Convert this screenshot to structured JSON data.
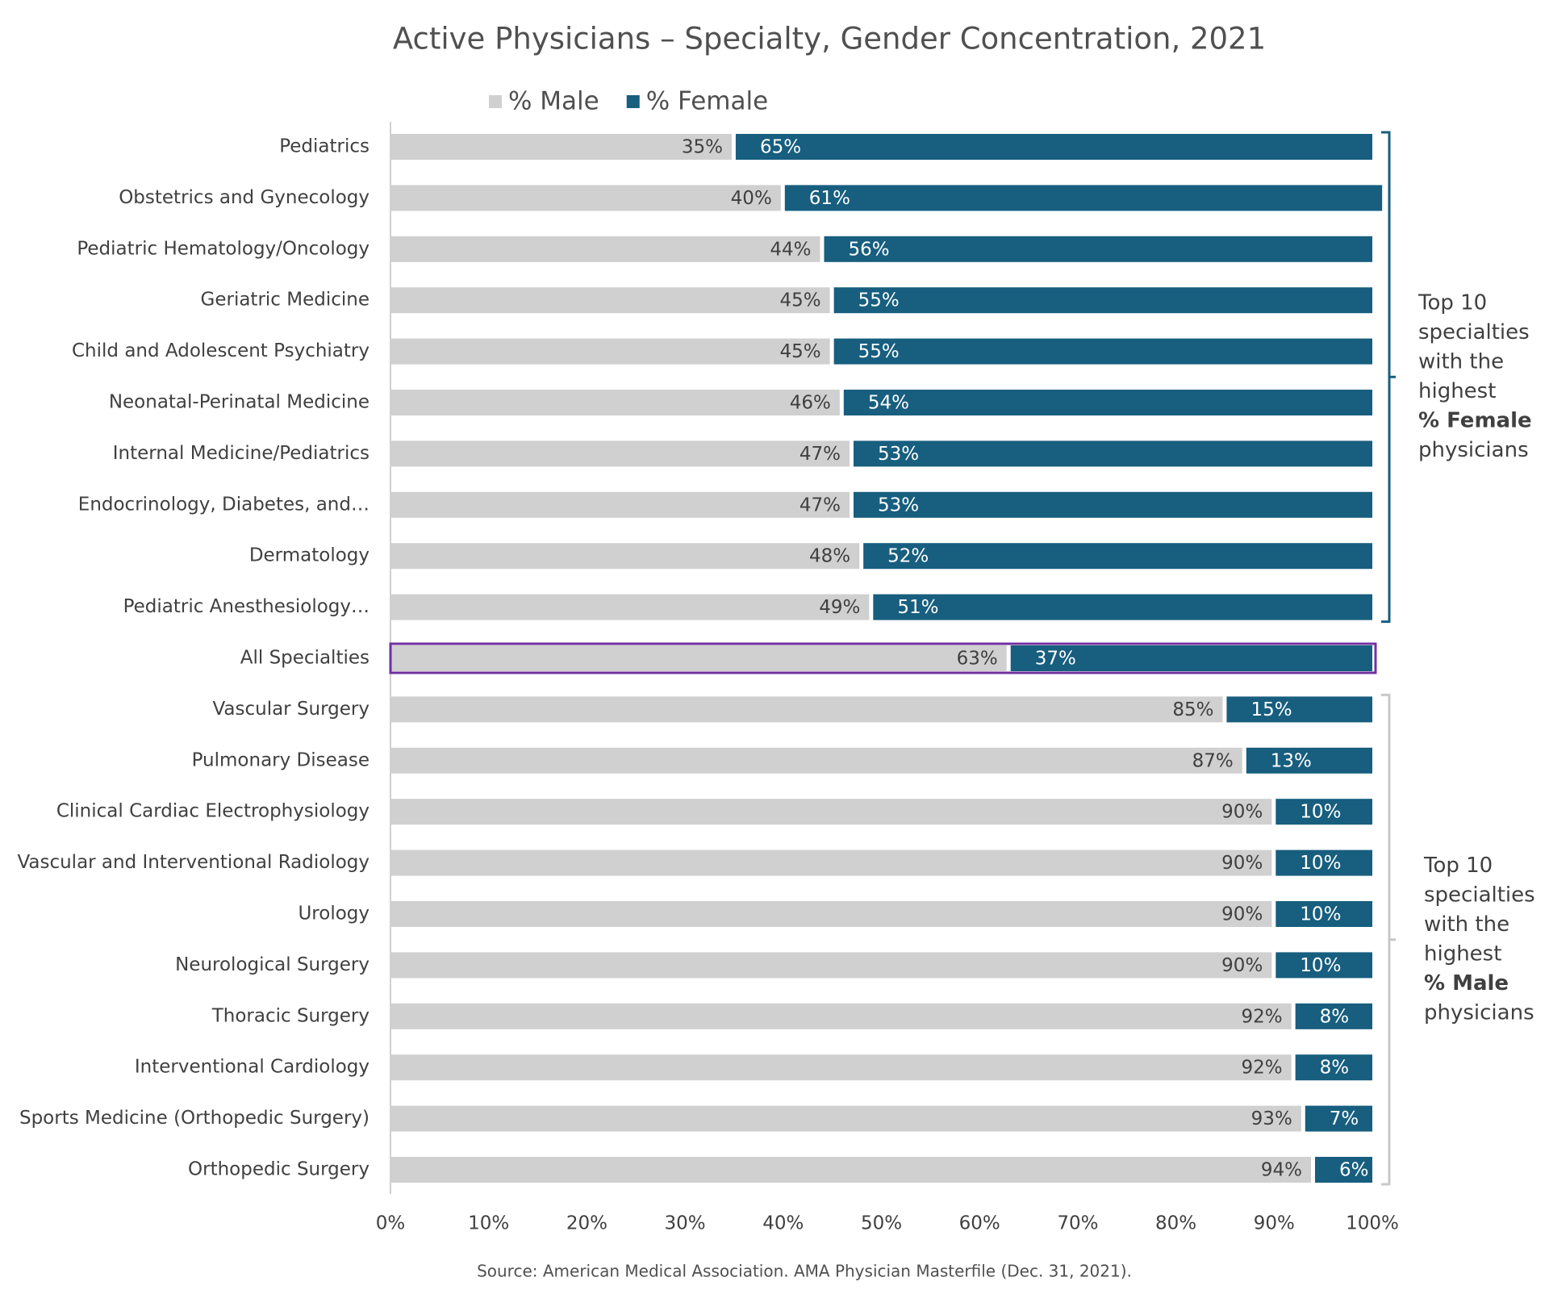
{
  "chart_data": {
    "type": "stacked_barh",
    "title": "Active Physicians – Specialty, Gender Concentration, 2021",
    "source": "Source:  American Medical Association. AMA Physician Masterfile (Dec. 31, 2021).",
    "categories": [
      "Pediatrics",
      "Obstetrics and Gynecology",
      "Pediatric Hematology/Oncology",
      "Geriatric Medicine",
      "Child and Adolescent Psychiatry",
      "Neonatal-Perinatal Medicine",
      "Internal Medicine/Pediatrics",
      "Endocrinology, Diabetes, and…",
      "Dermatology",
      "Pediatric Anesthesiology…",
      "All Specialties",
      "Vascular Surgery",
      "Pulmonary Disease",
      "Clinical Cardiac Electrophysiology",
      "Vascular and Interventional Radiology",
      "Urology",
      "Neurological Surgery",
      "Thoracic Surgery",
      "Interventional Cardiology",
      "Sports Medicine (Orthopedic Surgery)",
      "Orthopedic Surgery"
    ],
    "series": [
      {
        "name": "% Male",
        "color": "#d0d0d0",
        "values": [
          35,
          40,
          44,
          45,
          45,
          46,
          47,
          47,
          48,
          49,
          63,
          85,
          87,
          90,
          90,
          90,
          90,
          92,
          92,
          93,
          94
        ],
        "value_labels": [
          "35%",
          "40%",
          "44%",
          "45%",
          "45%",
          "46%",
          "47%",
          "47%",
          "48%",
          "49%",
          "63%",
          "85%",
          "87%",
          "90%",
          "90%",
          "90%",
          "90%",
          "92%",
          "92%",
          "93%",
          "94%"
        ]
      },
      {
        "name": "% Female",
        "color": "#175e7f",
        "values": [
          65,
          61,
          56,
          55,
          55,
          54,
          53,
          53,
          52,
          51,
          37,
          15,
          13,
          10,
          10,
          10,
          10,
          8,
          8,
          7,
          6
        ],
        "value_labels": [
          "65%",
          "61%",
          "56%",
          "55%",
          "55%",
          "54%",
          "53%",
          "53%",
          "52%",
          "51%",
          "37%",
          "15%",
          "13%",
          "10%",
          "10%",
          "10%",
          "10%",
          "8%",
          "8%",
          "7%",
          "6%"
        ]
      }
    ],
    "xlim": [
      0,
      100
    ],
    "xticks": [
      {
        "value": 0,
        "label": "0%"
      },
      {
        "value": 10,
        "label": "10%"
      },
      {
        "value": 20,
        "label": "20%"
      },
      {
        "value": 30,
        "label": "30%"
      },
      {
        "value": 40,
        "label": "40%"
      },
      {
        "value": 50,
        "label": "50%"
      },
      {
        "value": 60,
        "label": "60%"
      },
      {
        "value": 70,
        "label": "70%"
      },
      {
        "value": 80,
        "label": "80%"
      },
      {
        "value": 90,
        "label": "90%"
      },
      {
        "value": 100,
        "label": "100%"
      }
    ],
    "highlight": "All Specialties",
    "highlight_color": "#7030a0",
    "annotations": [
      {
        "lines": [
          "Top 10",
          "specialties",
          "with the",
          "highest",
          "% Female",
          "physicians"
        ],
        "color": "#175e7f"
      },
      {
        "lines": [
          "Top 10",
          "specialties",
          "with the",
          "highest",
          "% Male",
          "physicians"
        ],
        "color": "#c8c8c8"
      }
    ]
  }
}
